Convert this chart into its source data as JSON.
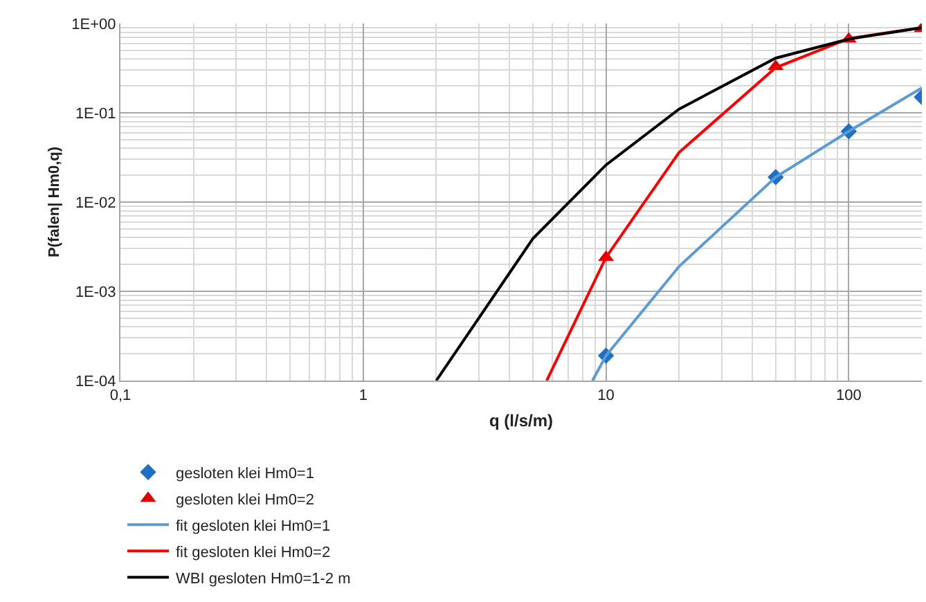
{
  "chart_data": {
    "type": "line",
    "xlabel": "q (l/s/m)",
    "ylabel": "P(falen| Hm0,q)",
    "log": "xy",
    "grid": true,
    "legend": "bottom",
    "xlim": [
      0.1,
      200
    ],
    "xticks": [
      {
        "value": 0.1,
        "label": "0,1"
      },
      1,
      10,
      100
    ],
    "ylim": [
      0.0001,
      1
    ],
    "yticks": [
      {
        "value": 0.0001,
        "label": "1E-04"
      },
      {
        "value": 0.001,
        "label": "1E-03"
      },
      {
        "value": 0.01,
        "label": "1E-02"
      },
      {
        "value": 0.1,
        "label": "1E-01"
      },
      {
        "value": 1,
        "label": "1E+00"
      }
    ],
    "series": [
      {
        "name": "gesloten klei Hm0=1",
        "type": "scatter",
        "marker": "diamond",
        "color": "#1f6fc5",
        "x": [
          10,
          50,
          100,
          200
        ],
        "values": [
          0.00019,
          0.019,
          0.062,
          0.15
        ]
      },
      {
        "name": "gesloten klei Hm0=2",
        "type": "scatter",
        "marker": "triangle",
        "color": "#e00000",
        "x": [
          10,
          50,
          100,
          200
        ],
        "values": [
          0.0024,
          0.33,
          0.67,
          0.88
        ]
      },
      {
        "name": "fit gesloten klei Hm0=1",
        "marker": "none",
        "color": "#5b9bd5",
        "x": [
          8.8,
          10,
          20,
          50,
          100,
          200
        ],
        "values": [
          0.0001,
          0.00019,
          0.0019,
          0.019,
          0.062,
          0.19
        ]
      },
      {
        "name": "fit gesloten klei Hm0=2",
        "marker": "none",
        "color": "#ff0000",
        "x": [
          5.7,
          10,
          20,
          50,
          100,
          200
        ],
        "values": [
          0.0001,
          0.0024,
          0.036,
          0.32,
          0.68,
          0.9
        ]
      },
      {
        "name": "WBI gesloten Hm0=1-2 m",
        "marker": "none",
        "color": "#000000",
        "x": [
          2,
          5,
          10,
          20,
          50,
          100,
          200
        ],
        "values": [
          0.0001,
          0.0039,
          0.026,
          0.11,
          0.41,
          0.67,
          0.9
        ]
      }
    ]
  }
}
